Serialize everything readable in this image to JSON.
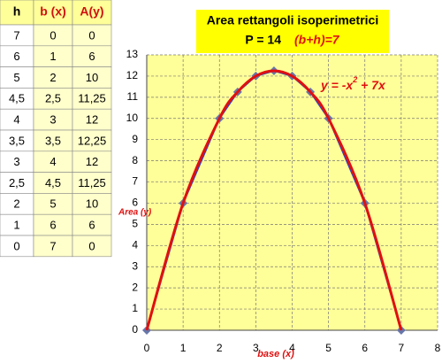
{
  "table": {
    "header": [
      "h",
      "b (x)",
      "A(y)"
    ],
    "rows": [
      [
        "7",
        "0",
        "0"
      ],
      [
        "6",
        "1",
        "6"
      ],
      [
        "5",
        "2",
        "10"
      ],
      [
        "4,5",
        "2,5",
        "11,25"
      ],
      [
        "4",
        "3",
        "12"
      ],
      [
        "3,5",
        "3,5",
        "12,25"
      ],
      [
        "3",
        "4",
        "12"
      ],
      [
        "2,5",
        "4,5",
        "11,25"
      ],
      [
        "2",
        "5",
        "10"
      ],
      [
        "1",
        "6",
        "6"
      ],
      [
        "0",
        "7",
        "0"
      ]
    ]
  },
  "chart_data": {
    "type": "line",
    "title": "Area rettangoli isoperimetrici",
    "subtitle": "P = 14",
    "subtitle_note": "(b+h)=7",
    "equation": {
      "base": "y = -x",
      "exponent": "2",
      "rest": " + 7x"
    },
    "x_label": "base (x)",
    "y_label": "Area (y)",
    "x": [
      0,
      1,
      2,
      2.5,
      3,
      3.5,
      4,
      4.5,
      5,
      6,
      7
    ],
    "series": [
      {
        "color": "#3344bb",
        "marker": "#6677aa",
        "values": [
          0,
          6,
          10,
          11.25,
          12,
          12.25,
          12,
          11.25,
          10,
          6,
          0
        ]
      },
      {
        "color": "#e01010",
        "smooth": true,
        "values": [
          0,
          6,
          10,
          11.25,
          12,
          12.25,
          12,
          11.25,
          10,
          6,
          0
        ]
      }
    ],
    "xlim": [
      0,
      8
    ],
    "xticks": [
      0,
      1,
      2,
      3,
      4,
      5,
      6,
      7,
      8
    ],
    "ylim": [
      0,
      13
    ],
    "yticks": [
      0,
      1,
      2,
      3,
      4,
      5,
      6,
      7,
      8,
      9,
      10,
      11,
      12,
      13
    ],
    "grid": true
  }
}
